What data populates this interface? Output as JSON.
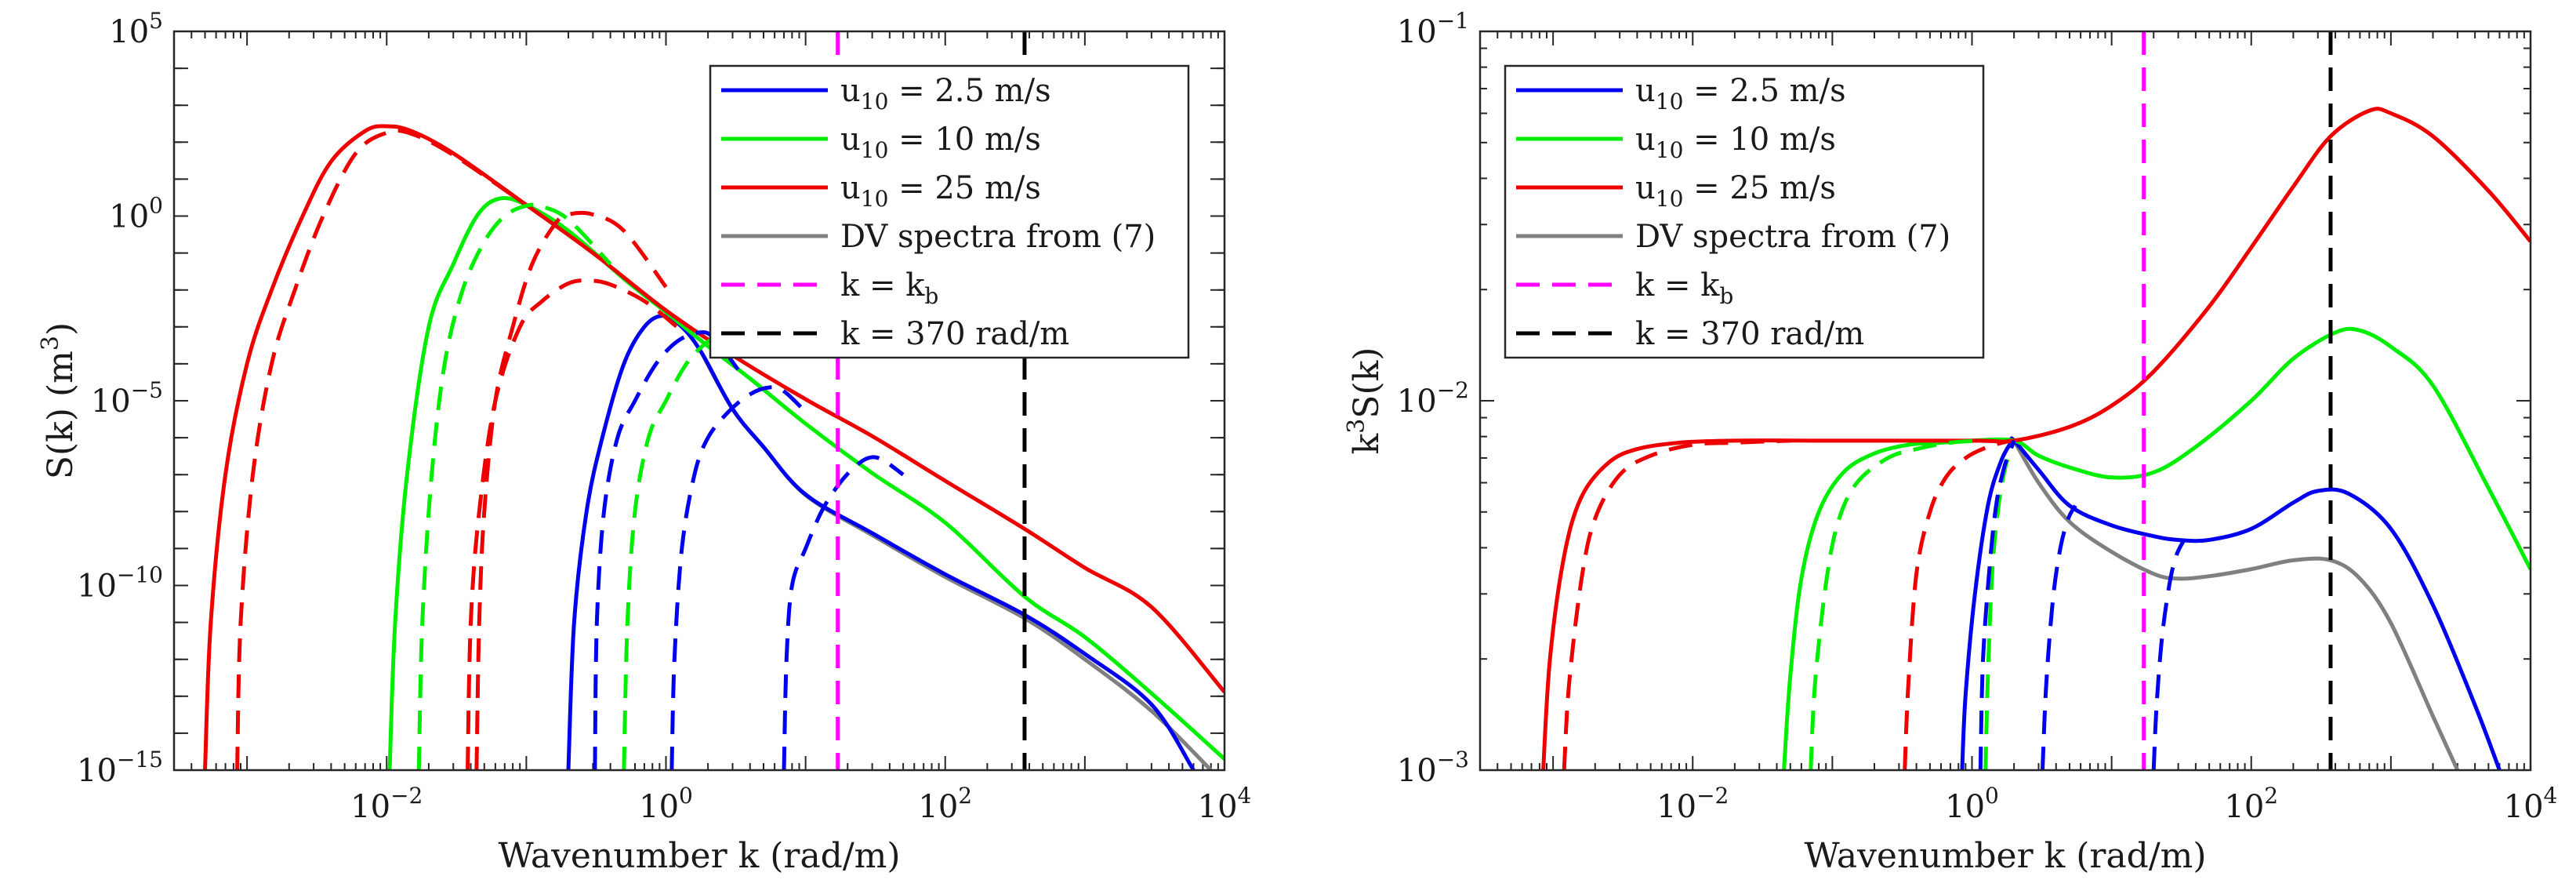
{
  "chart_data": [
    {
      "type": "line",
      "scale": "log-log",
      "xlabel": "Wavenumber k (rad/m)",
      "ylabel": "S(k) (m",
      "ylabel_sup": "3",
      "ylabel_end": ")",
      "xlim": [
        0.0003,
        10000
      ],
      "ylim": [
        1e-15,
        100000
      ],
      "x_ticks": [
        {
          "value": 0.01,
          "base": "10",
          "exp": "−2"
        },
        {
          "value": 1,
          "base": "10",
          "exp": "0"
        },
        {
          "value": 100,
          "base": "10",
          "exp": "2"
        },
        {
          "value": 10000,
          "base": "10",
          "exp": "4"
        }
      ],
      "y_ticks": [
        {
          "value": 1e-15,
          "base": "10",
          "exp": "−15"
        },
        {
          "value": 1e-10,
          "base": "10",
          "exp": "−10"
        },
        {
          "value": 1e-05,
          "base": "10",
          "exp": "−5"
        },
        {
          "value": 1,
          "base": "10",
          "exp": "0"
        },
        {
          "value": 100000,
          "base": "10",
          "exp": "5"
        }
      ],
      "vlines": [
        {
          "name": "k_b",
          "x": 17,
          "color": "#ff00ff",
          "dash": true
        },
        {
          "name": "k370",
          "x": 370,
          "color": "#000000",
          "dash": true
        }
      ],
      "series": [
        {
          "id": "dv",
          "color": "#808080",
          "dash": false,
          "x": [
            1.8,
            3,
            5,
            10,
            30,
            100,
            370,
            1000,
            3000,
            8000
          ],
          "y": [
            0.0002,
            6e-06,
            5.6e-07,
            2.8e-08,
            2.3e-09,
            1.7e-10,
            1.3e-11,
            1e-12,
            4e-14,
            1e-15
          ]
        },
        {
          "id": "u2_5",
          "color": "#0000ee",
          "dash": false,
          "x": [
            0.2,
            0.22,
            0.27,
            0.35,
            0.5,
            0.7,
            0.95,
            1.3,
            1.8,
            3,
            5,
            10,
            30,
            100,
            370,
            1000,
            3000,
            6000
          ],
          "y": [
            1e-15,
            1e-11,
            1e-08,
            1e-06,
            0.0001,
            0.001,
            0.002,
            0.001,
            0.0002,
            6e-06,
            5.6e-07,
            2.9e-08,
            2.6e-09,
            2e-10,
            1.6e-11,
            1.4e-12,
            6e-14,
            1e-15
          ]
        },
        {
          "id": "u10",
          "color": "#00ee00",
          "dash": false,
          "x": [
            0.0105,
            0.0115,
            0.014,
            0.02,
            0.03,
            0.045,
            0.065,
            0.1,
            0.2,
            0.5,
            1,
            2,
            4,
            10,
            30,
            100,
            370,
            1000,
            3000,
            10000
          ],
          "y": [
            1e-15,
            1e-11,
            1e-07,
            0.001,
            0.05,
            1.1,
            3.0,
            2.0,
            0.4,
            0.02,
            0.0025,
            0.0003,
            4e-05,
            2.4e-06,
            1.1e-07,
            5e-09,
            5e-11,
            4e-12,
            1.2e-13,
            2e-15
          ]
        },
        {
          "id": "u25",
          "color": "#ee0000",
          "dash": false,
          "x": [
            0.0005,
            0.00055,
            0.0007,
            0.001,
            0.0015,
            0.0025,
            0.004,
            0.007,
            0.01,
            0.015,
            0.03,
            0.1,
            0.3,
            1,
            3,
            10,
            30,
            100,
            370,
            1000,
            3000,
            10000
          ],
          "y": [
            1e-15,
            1e-11,
            1e-07,
            0.0001,
            0.01,
            1.0,
            30.0,
            200.0,
            270.0,
            200.0,
            50.0,
            2.0,
            0.1,
            0.0028,
            0.00017,
            1.1e-05,
            1.1e-06,
            6.8e-08,
            3.4e-09,
            3e-10,
            2.6e-11,
            1.3e-13
          ]
        },
        {
          "id": "dv_r1",
          "color": "#ee0000",
          "dash": true,
          "x": [
            0.00085,
            0.0009,
            0.0011,
            0.0015,
            0.0022,
            0.0035,
            0.006,
            0.01,
            0.015,
            0.03,
            0.1
          ],
          "y": [
            1e-15,
            1e-11,
            1e-07,
            0.0001,
            0.01,
            1.0,
            50.0,
            180.0,
            170.0,
            45.0,
            2.0
          ]
        },
        {
          "id": "dv_r2",
          "color": "#ee0000",
          "dash": true,
          "x": [
            0.044,
            0.046,
            0.05,
            0.06,
            0.08,
            0.11,
            0.16,
            0.2,
            0.3,
            0.5,
            1
          ],
          "y": [
            1e-15,
            1e-11,
            1e-08,
            1e-05,
            0.001,
            0.05,
            0.6,
            1.1,
            1.1,
            0.4,
            0.012
          ]
        },
        {
          "id": "dv_r3",
          "color": "#ee0000",
          "dash": true,
          "x": [
            0.038,
            0.04,
            0.046,
            0.06,
            0.09,
            0.13,
            0.2,
            0.28,
            0.4,
            0.7,
            1.2
          ],
          "y": [
            1e-15,
            1e-11,
            1e-08,
            1e-05,
            0.001,
            0.005,
            0.015,
            0.018,
            0.014,
            0.005,
            0.001
          ]
        },
        {
          "id": "dv_g1",
          "color": "#00ee00",
          "dash": true,
          "x": [
            0.017,
            0.018,
            0.021,
            0.026,
            0.035,
            0.05,
            0.07,
            0.1,
            0.13,
            0.2,
            0.4
          ],
          "y": [
            1e-15,
            1e-11,
            1e-07,
            0.0001,
            0.01,
            0.2,
            1.0,
            1.9,
            1.8,
            0.8,
            0.05
          ]
        },
        {
          "id": "dv_g2",
          "color": "#00ee00",
          "dash": true,
          "x": [
            0.5,
            0.53,
            0.6,
            0.75,
            1,
            1.4,
            2,
            2.5,
            3.5
          ],
          "y": [
            1e-15,
            1e-11,
            1e-08,
            1e-06,
            1e-05,
            0.0001,
            0.0004,
            0.0005,
            0.0002
          ]
        },
        {
          "id": "dv_b1",
          "color": "#0000ee",
          "dash": true,
          "x": [
            0.31,
            0.32,
            0.36,
            0.45,
            0.6,
            0.85,
            1.2,
            1.7,
            2.2,
            3.5
          ],
          "y": [
            1e-15,
            1e-11,
            1e-08,
            1e-06,
            1e-05,
            0.0001,
            0.0004,
            0.0007,
            0.0005,
            5e-05
          ]
        },
        {
          "id": "dv_b2",
          "color": "#0000ee",
          "dash": true,
          "x": [
            1.1,
            1.15,
            1.3,
            1.6,
            2,
            2.8,
            4,
            5.5,
            7,
            10
          ],
          "y": [
            1e-15,
            1e-12,
            1e-09,
            1e-07,
            1e-06,
            5e-06,
            1.5e-05,
            2.3e-05,
            1.8e-05,
            5e-06
          ]
        },
        {
          "id": "dv_b3",
          "color": "#0000ee",
          "dash": true,
          "x": [
            7,
            7.3,
            8,
            10,
            13,
            17,
            22,
            28,
            35,
            50
          ],
          "y": [
            1e-15,
            1e-12,
            1e-10,
            1e-09,
            1e-08,
            5e-08,
            1.5e-07,
            2.8e-07,
            2.6e-07,
            1e-07
          ]
        }
      ],
      "legend_position": "top-right",
      "legend": [
        {
          "label": "u",
          "sub": "10",
          "rest": " = 2.5 m/s",
          "color": "#0000ee",
          "dash": false
        },
        {
          "label": "u",
          "sub": "10",
          "rest": " = 10 m/s",
          "color": "#00ee00",
          "dash": false
        },
        {
          "label": "u",
          "sub": "10",
          "rest": " = 25 m/s",
          "color": "#ee0000",
          "dash": false
        },
        {
          "label": "DV spectra from (7)",
          "sub": "",
          "rest": "",
          "color": "#808080",
          "dash": false
        },
        {
          "label": "k = k",
          "sub": "b",
          "rest": "",
          "color": "#ff00ff",
          "dash": true
        },
        {
          "label": "k = 370 rad/m",
          "sub": "",
          "rest": "",
          "color": "#000000",
          "dash": true
        }
      ]
    },
    {
      "type": "line",
      "scale": "log-log",
      "xlabel": "Wavenumber k (rad/m)",
      "ylabel": "k",
      "ylabel_sup": "3",
      "ylabel_end": "S(k)",
      "xlim": [
        0.0003,
        10000
      ],
      "ylim": [
        0.001,
        0.1
      ],
      "x_ticks": [
        {
          "value": 0.01,
          "base": "10",
          "exp": "−2"
        },
        {
          "value": 1,
          "base": "10",
          "exp": "0"
        },
        {
          "value": 100,
          "base": "10",
          "exp": "2"
        },
        {
          "value": 10000,
          "base": "10",
          "exp": "4"
        }
      ],
      "y_ticks": [
        {
          "value": 0.001,
          "base": "10",
          "exp": "−3"
        },
        {
          "value": 0.01,
          "base": "10",
          "exp": "−2"
        },
        {
          "value": 0.1,
          "base": "10",
          "exp": "−1"
        }
      ],
      "vlines": [
        {
          "name": "k_b",
          "x": 17,
          "color": "#ff00ff",
          "dash": true
        },
        {
          "name": "k370",
          "x": 370,
          "color": "#000000",
          "dash": true
        }
      ],
      "series": [
        {
          "id": "dv",
          "color": "#808080",
          "dash": false,
          "x": [
            2,
            3,
            5,
            10,
            20,
            30,
            50,
            100,
            200,
            370,
            600,
            1000,
            2000,
            3000
          ],
          "y": [
            0.0078,
            0.006,
            0.0047,
            0.0039,
            0.0034,
            0.0033,
            0.00335,
            0.0035,
            0.0037,
            0.0037,
            0.0033,
            0.0025,
            0.0014,
            0.001
          ]
        },
        {
          "id": "u2_5",
          "color": "#0000ee",
          "dash": false,
          "x": [
            0.85,
            0.9,
            1.05,
            1.3,
            1.6,
            1.9,
            2,
            3,
            5,
            10,
            20,
            30,
            50,
            100,
            200,
            300,
            500,
            1000,
            2000,
            4000,
            6000
          ],
          "y": [
            0.001,
            0.0016,
            0.003,
            0.0052,
            0.0068,
            0.0077,
            0.0078,
            0.0065,
            0.0052,
            0.0046,
            0.0043,
            0.0042,
            0.0042,
            0.0045,
            0.0053,
            0.0057,
            0.0056,
            0.0045,
            0.0028,
            0.0015,
            0.001
          ]
        },
        {
          "id": "u10",
          "color": "#00ee00",
          "dash": false,
          "x": [
            0.045,
            0.05,
            0.06,
            0.08,
            0.12,
            0.2,
            0.35,
            0.6,
            1,
            2,
            3,
            5,
            10,
            20,
            40,
            100,
            200,
            400,
            600,
            1000,
            2000,
            5000,
            10000
          ],
          "y": [
            0.001,
            0.0018,
            0.0033,
            0.005,
            0.0064,
            0.0072,
            0.0076,
            0.0077,
            0.0078,
            0.0078,
            0.0071,
            0.0066,
            0.0062,
            0.0064,
            0.0075,
            0.01,
            0.013,
            0.0153,
            0.0155,
            0.014,
            0.011,
            0.0058,
            0.0035
          ]
        },
        {
          "id": "u25",
          "color": "#ee0000",
          "dash": false,
          "x": [
            0.00085,
            0.00095,
            0.0012,
            0.0016,
            0.0025,
            0.004,
            0.008,
            0.02,
            0.1,
            1,
            2,
            5,
            10,
            20,
            50,
            100,
            200,
            370,
            700,
            1000,
            2000,
            5000,
            10000
          ],
          "y": [
            0.001,
            0.002,
            0.0038,
            0.0055,
            0.0068,
            0.0074,
            0.0077,
            0.0078,
            0.0078,
            0.0078,
            0.0078,
            0.0085,
            0.0097,
            0.012,
            0.018,
            0.026,
            0.038,
            0.052,
            0.061,
            0.06,
            0.052,
            0.037,
            0.027
          ]
        },
        {
          "id": "dv_r1",
          "color": "#ee0000",
          "dash": true,
          "x": [
            0.0012,
            0.0013,
            0.0016,
            0.002,
            0.003,
            0.005,
            0.01,
            0.02,
            0.05
          ],
          "y": [
            0.001,
            0.0017,
            0.0033,
            0.0048,
            0.0063,
            0.0071,
            0.0076,
            0.0077,
            0.0078
          ]
        },
        {
          "id": "dv_g1",
          "color": "#00ee00",
          "dash": true,
          "x": [
            0.07,
            0.075,
            0.09,
            0.11,
            0.15,
            0.25,
            0.4,
            0.7,
            1.2
          ],
          "y": [
            0.001,
            0.0017,
            0.0032,
            0.0047,
            0.006,
            0.007,
            0.0074,
            0.0077,
            0.0078
          ]
        },
        {
          "id": "dv_r2",
          "color": "#ee0000",
          "dash": true,
          "x": [
            0.33,
            0.35,
            0.4,
            0.5,
            0.65,
            0.9,
            1.3,
            1.9
          ],
          "y": [
            0.001,
            0.0017,
            0.0034,
            0.005,
            0.0062,
            0.007,
            0.0075,
            0.0078
          ]
        },
        {
          "id": "dv_g2",
          "color": "#00ee00",
          "dash": true,
          "x": [
            1.25,
            1.3,
            1.4,
            1.55,
            1.7,
            1.85,
            2
          ],
          "y": [
            0.001,
            0.0018,
            0.0035,
            0.0052,
            0.0064,
            0.0072,
            0.0078
          ]
        },
        {
          "id": "dv_b1",
          "color": "#0000ee",
          "dash": true,
          "x": [
            1.15,
            1.2,
            1.35,
            1.5,
            1.7,
            1.9,
            2
          ],
          "y": [
            0.001,
            0.002,
            0.0037,
            0.0053,
            0.0066,
            0.0074,
            0.0078
          ]
        },
        {
          "id": "dv_b2",
          "color": "#0000ee",
          "dash": true,
          "x": [
            3.2,
            3.4,
            3.8,
            4.3,
            4.9,
            5.5
          ],
          "y": [
            0.001,
            0.0017,
            0.0029,
            0.004,
            0.0048,
            0.0052
          ]
        },
        {
          "id": "dv_b3",
          "color": "#0000ee",
          "dash": true,
          "x": [
            20,
            21,
            23,
            26,
            29,
            33
          ],
          "y": [
            0.001,
            0.0015,
            0.0023,
            0.0032,
            0.0038,
            0.0042
          ]
        }
      ],
      "legend_position": "top-left",
      "legend": [
        {
          "label": "u",
          "sub": "10",
          "rest": " = 2.5 m/s",
          "color": "#0000ee",
          "dash": false
        },
        {
          "label": "u",
          "sub": "10",
          "rest": " = 10 m/s",
          "color": "#00ee00",
          "dash": false
        },
        {
          "label": "u",
          "sub": "10",
          "rest": " = 25 m/s",
          "color": "#ee0000",
          "dash": false
        },
        {
          "label": "DV spectra from (7)",
          "sub": "",
          "rest": "",
          "color": "#808080",
          "dash": false
        },
        {
          "label": "k = k",
          "sub": "b",
          "rest": "",
          "color": "#ff00ff",
          "dash": true
        },
        {
          "label": "k = 370 rad/m",
          "sub": "",
          "rest": "",
          "color": "#000000",
          "dash": true
        }
      ]
    }
  ]
}
